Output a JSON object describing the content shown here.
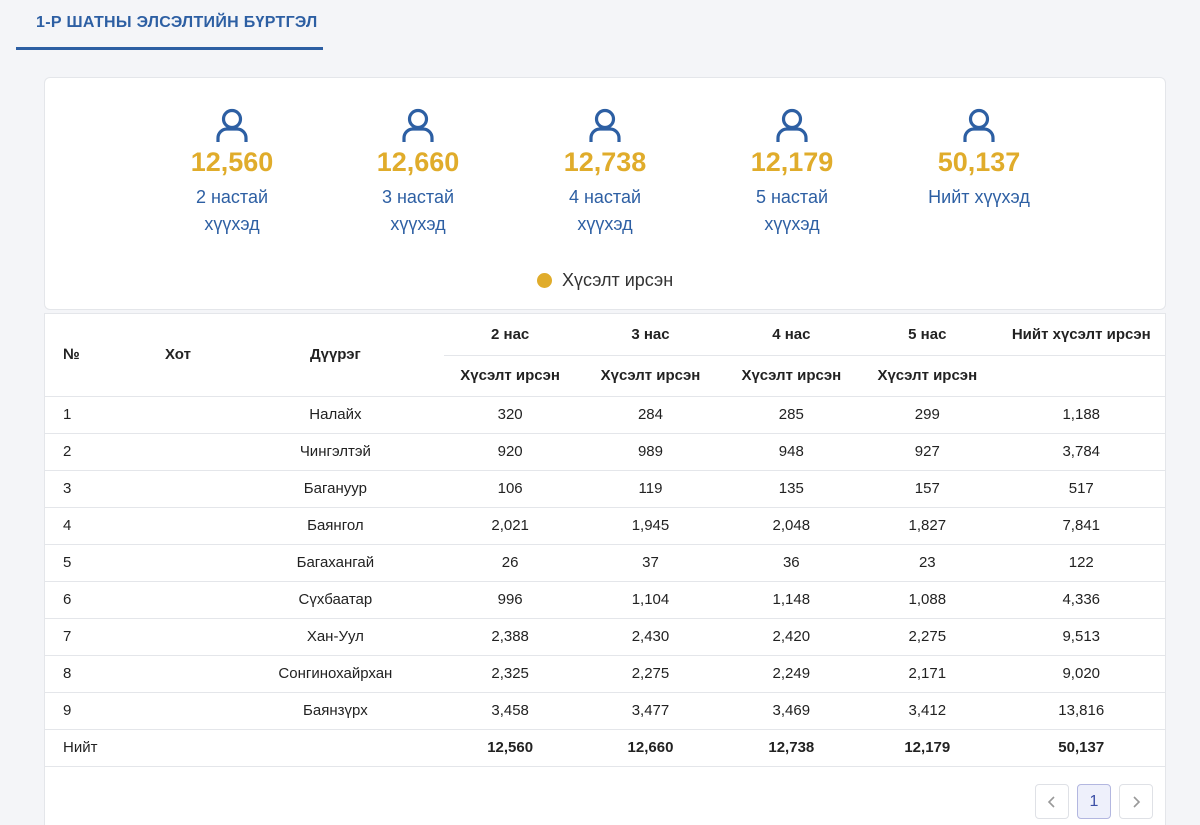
{
  "tab": {
    "label": "1-Р ШАТНЫ ЭЛСЭЛТИЙН БҮРТГЭЛ"
  },
  "colors": {
    "accent": "#2d5fa3",
    "gold": "#e0ac2b"
  },
  "stats": [
    {
      "value": "12,560",
      "label": "2 настай хүүхэд",
      "icon": "user-icon"
    },
    {
      "value": "12,660",
      "label": "3 настай хүүхэд",
      "icon": "user-icon"
    },
    {
      "value": "12,738",
      "label": "4 настай хүүхэд",
      "icon": "user-icon"
    },
    {
      "value": "12,179",
      "label": "5 настай хүүхэд",
      "icon": "user-icon"
    },
    {
      "value": "50,137",
      "label": "Нийт хүүхэд",
      "icon": "user-icon"
    }
  ],
  "legend": {
    "label": "Хүсэлт ирсэн"
  },
  "table": {
    "headers": {
      "no": "№",
      "city": "Хот",
      "district": "Дүүрэг",
      "age2": "2 нас",
      "age3": "3 нас",
      "age4": "4 нас",
      "age5": "5 нас",
      "total": "Нийт хүсэлт ирсэн",
      "sub": "Хүсэлт ирсэн"
    },
    "rows": [
      {
        "no": "1",
        "city": "",
        "district": "Налайх",
        "a2": "320",
        "a3": "284",
        "a4": "285",
        "a5": "299",
        "total": "1,188"
      },
      {
        "no": "2",
        "city": "",
        "district": "Чингэлтэй",
        "a2": "920",
        "a3": "989",
        "a4": "948",
        "a5": "927",
        "total": "3,784"
      },
      {
        "no": "3",
        "city": "",
        "district": "Багануур",
        "a2": "106",
        "a3": "119",
        "a4": "135",
        "a5": "157",
        "total": "517"
      },
      {
        "no": "4",
        "city": "",
        "district": "Баянгол",
        "a2": "2,021",
        "a3": "1,945",
        "a4": "2,048",
        "a5": "1,827",
        "total": "7,841"
      },
      {
        "no": "5",
        "city": "",
        "district": "Багахангай",
        "a2": "26",
        "a3": "37",
        "a4": "36",
        "a5": "23",
        "total": "122"
      },
      {
        "no": "6",
        "city": "",
        "district": "Сүхбаатар",
        "a2": "996",
        "a3": "1,104",
        "a4": "1,148",
        "a5": "1,088",
        "total": "4,336"
      },
      {
        "no": "7",
        "city": "",
        "district": "Хан-Уул",
        "a2": "2,388",
        "a3": "2,430",
        "a4": "2,420",
        "a5": "2,275",
        "total": "9,513"
      },
      {
        "no": "8",
        "city": "",
        "district": "Сонгинохайрхан",
        "a2": "2,325",
        "a3": "2,275",
        "a4": "2,249",
        "a5": "2,171",
        "total": "9,020"
      },
      {
        "no": "9",
        "city": "",
        "district": "Баянзүрх",
        "a2": "3,458",
        "a3": "3,477",
        "a4": "3,469",
        "a5": "3,412",
        "total": "13,816"
      }
    ],
    "totals": {
      "label": "Нийт",
      "a2": "12,560",
      "a3": "12,660",
      "a4": "12,738",
      "a5": "12,179",
      "total": "50,137"
    }
  },
  "pagination": {
    "prev_icon": "chevron-left-icon",
    "current_page": "1",
    "next_icon": "chevron-right-icon"
  }
}
